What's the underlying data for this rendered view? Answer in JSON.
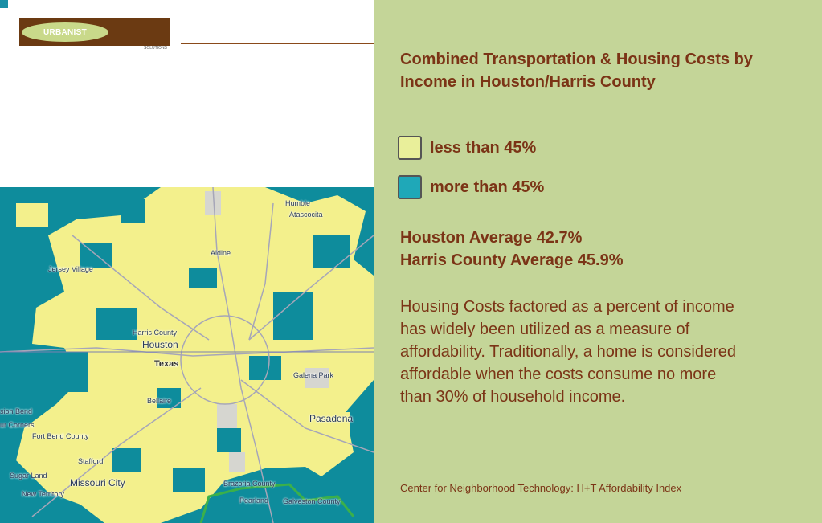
{
  "logo": {
    "name": "URBANIST",
    "sub": "SOLUTIONS"
  },
  "colors": {
    "low": "#e9ef9a",
    "high": "#1fa8b8",
    "map_yellow": "#f3f08c",
    "map_teal": "#0e8c9c",
    "text": "#7b3416",
    "panel": "#c4d598"
  },
  "panel": {
    "title": "Combined Transportation & Housing Costs by Income in Houston/Harris County",
    "legend": [
      {
        "label": "less than 45%",
        "color": "#e9ef9a"
      },
      {
        "label": "more than 45%",
        "color": "#1fa8b8"
      }
    ],
    "houston_avg": "Houston Average 42.7%",
    "harris_avg": "Harris County Average 45.9%",
    "paragraph": "Housing Costs factored as a percent of income has widely been utilized as a measure of affordability. Traditionally, a home is considered affordable when the costs consume no more than 30% of household income.",
    "source": "Center for Neighborhood Technology: H+T Affordability Index"
  },
  "map": {
    "places": [
      "Humble",
      "Atascocita",
      "Aldine",
      "Jersey Village",
      "Harris County",
      "Houston",
      "Texas",
      "Galena Park",
      "Bellaire",
      "sion Bend",
      "ur Corners",
      "Fort Bend County",
      "Stafford",
      "Sugar Land",
      "Missouri City",
      "Pasadena",
      "Pearland",
      "Brazoria County",
      "Galveston County",
      "New Territory"
    ]
  }
}
